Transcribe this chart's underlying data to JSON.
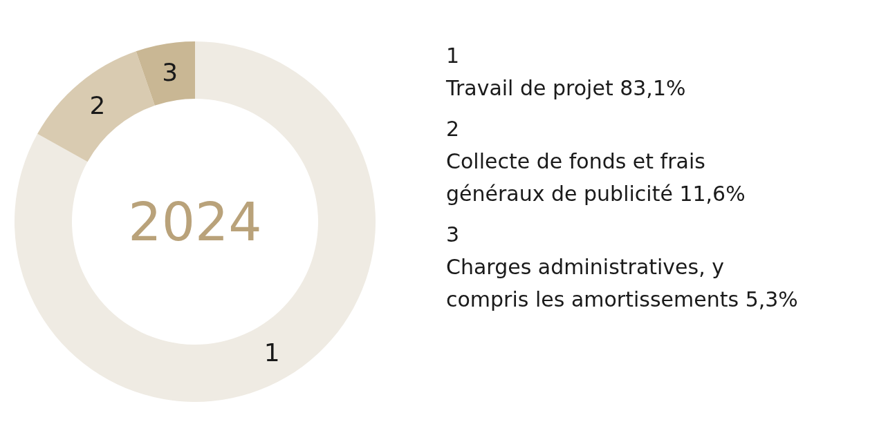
{
  "chart_data": {
    "type": "donut",
    "title": "2024",
    "categories": [
      "1",
      "2",
      "3"
    ],
    "values": [
      83.1,
      11.6,
      5.3
    ],
    "value_labels": [
      "83,1%",
      "11,6%",
      "5,3%"
    ],
    "colors": [
      "#efebe3",
      "#d9cbb1",
      "#c9b794"
    ],
    "annotations": [
      "Travail de projet",
      "Collecte de fonds et frais généraux de publicité",
      "Charges administratives, y compris les amortissements"
    ]
  }
}
